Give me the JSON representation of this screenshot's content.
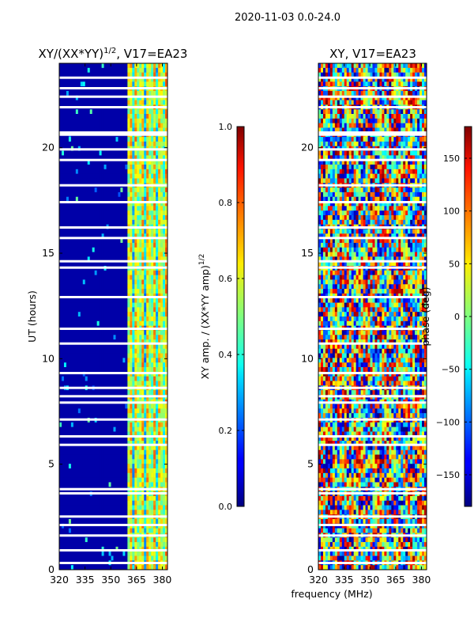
{
  "suptitle": "2020-11-03 0.0-24.0",
  "chart_data": [
    {
      "type": "heatmap",
      "title_main": "XY/(XX*YY)",
      "title_sup": "1/2",
      "title_tail": ", V17=EA23",
      "xlabel": "",
      "ylabel": "UT (hours)",
      "xlim": [
        320,
        383
      ],
      "ylim": [
        0,
        24
      ],
      "xticks": [
        320,
        335,
        350,
        365,
        380
      ],
      "yticks": [
        0,
        5,
        10,
        15,
        20
      ],
      "colorbar": {
        "label_main": "XY amp. / (XX*YY amp)",
        "label_sup": "1/2",
        "range": [
          0,
          1
        ],
        "ticks": [
          "0.0",
          "0.2",
          "0.4",
          "0.6",
          "0.8",
          "1.0"
        ],
        "tick_values": [
          0,
          0.2,
          0.4,
          0.6,
          0.8,
          1.0
        ],
        "colormap": "jet"
      }
    },
    {
      "type": "heatmap",
      "title": "XY, V17=EA23",
      "xlabel": "frequency (MHz)",
      "ylabel": "",
      "xlim": [
        320,
        383
      ],
      "ylim": [
        0,
        24
      ],
      "xticks": [
        320,
        335,
        350,
        365,
        380
      ],
      "yticks": [
        0,
        5,
        10,
        15,
        20
      ],
      "colorbar": {
        "label": "phase (deg)",
        "range": [
          -180,
          180
        ],
        "ticks": [
          "−150",
          "−100",
          "−50",
          "0",
          "50",
          "100",
          "150"
        ],
        "tick_values": [
          -150,
          -100,
          -50,
          0,
          50,
          100,
          150
        ],
        "colormap": "jet"
      }
    }
  ]
}
